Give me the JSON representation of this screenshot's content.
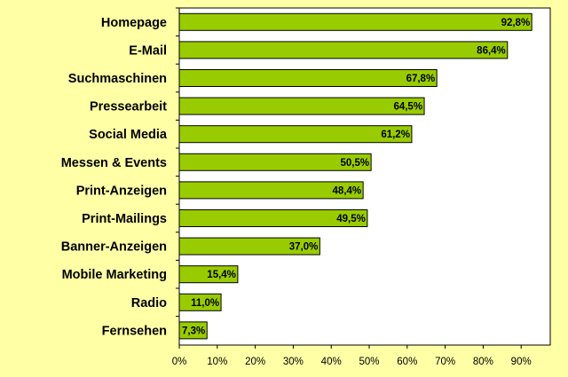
{
  "chart_data": {
    "type": "bar",
    "orientation": "horizontal",
    "categories": [
      "Homepage",
      "E-Mail",
      "Suchmaschinen",
      "Pressearbeit",
      "Social Media",
      "Messen & Events",
      "Print-Anzeigen",
      "Print-Mailings",
      "Banner-Anzeigen",
      "Mobile Marketing",
      "Radio",
      "Fernsehen"
    ],
    "values": [
      92.8,
      86.4,
      67.8,
      64.5,
      61.2,
      50.5,
      48.4,
      49.5,
      37.0,
      15.4,
      11.0,
      7.3
    ],
    "data_labels": [
      "92,8%",
      "86,4%",
      "67,8%",
      "64,5%",
      "61,2%",
      "50,5%",
      "48,4%",
      "49,5%",
      "37,0%",
      "15,4%",
      "11,0%",
      "7,3%"
    ],
    "x_ticks": [
      "0%",
      "10%",
      "20%",
      "30%",
      "40%",
      "50%",
      "60%",
      "70%",
      "80%",
      "90%"
    ],
    "xlim": [
      0,
      100
    ],
    "title": "",
    "xlabel": "",
    "ylabel": "",
    "grid": false,
    "legend": "none",
    "colors": {
      "background": "#FFFFA6",
      "plot_area": "#FFFFFF",
      "bar_fill": "#99CC00",
      "bar_stroke": "#000000"
    }
  }
}
